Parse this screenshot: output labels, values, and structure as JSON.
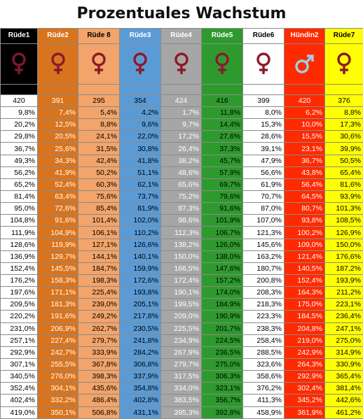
{
  "title": "Prozentuales Wachstum",
  "columns": [
    {
      "name": "Rüde1",
      "bg": "#000000",
      "text": "#ffffff",
      "hbg": "#000000",
      "htext": "#ffffff",
      "symbol": "female",
      "symcolor": "#7b1a2e",
      "symbg": "#000000",
      "base": "420"
    },
    {
      "name": "Rüde2",
      "bg": "#d9741e",
      "text": "#ffffff",
      "hbg": "#d9741e",
      "htext": "#ffffff",
      "symbol": "female",
      "symcolor": "#8b1a2a",
      "symbg": "#d9741e",
      "base": "391"
    },
    {
      "name": "Rüde 8",
      "bg": "#f2a46a",
      "text": "#000000",
      "hbg": "#f2a46a",
      "htext": "#000000",
      "symbol": "female",
      "symcolor": "#8b1a2a",
      "symbg": "#f2a46a",
      "base": "295"
    },
    {
      "name": "Rüde3",
      "bg": "#5b9bd5",
      "text": "#000000",
      "hbg": "#5b9bd5",
      "htext": "#ffffff",
      "symbol": "female",
      "symcolor": "#8b1a2a",
      "symbg": "#5b9bd5",
      "base": "354"
    },
    {
      "name": "Rüde4",
      "bg": "#a6a6a6",
      "text": "#ffffff",
      "hbg": "#a6a6a6",
      "htext": "#ffffff",
      "symbol": "female",
      "symcolor": "#8b1a2a",
      "symbg": "#a6a6a6",
      "base": "424"
    },
    {
      "name": "Rüde5",
      "bg": "#2e9a2e",
      "text": "#000000",
      "hbg": "#2e9a2e",
      "htext": "#ffffff",
      "symbol": "female",
      "symcolor": "#8b1a2a",
      "symbg": "#2e9a2e",
      "base": "416"
    },
    {
      "name": "Rüde6",
      "bg": "#ffffff",
      "text": "#000000",
      "hbg": "#ffffff",
      "htext": "#000000",
      "symbol": "female",
      "symcolor": "#8b1a2a",
      "symbg": "#ffffff",
      "base": "399"
    },
    {
      "name": "Hündin2",
      "bg": "#ff2a00",
      "text": "#ffffff",
      "hbg": "#ff2a00",
      "htext": "#ffffff",
      "symbol": "male",
      "symcolor": "#9fd0ea",
      "symbg": "#ff2a00",
      "base": "420"
    },
    {
      "name": "Rüde7",
      "bg": "#ffff00",
      "text": "#000000",
      "hbg": "#ffff00",
      "htext": "#000000",
      "symbol": "female",
      "symcolor": "#8b1a2a",
      "symbg": "#ffff00",
      "base": "376"
    }
  ],
  "rows": [
    [
      "9,8%",
      "7,4%",
      "5,4%",
      "4,2%",
      "1,7%",
      "11,8%",
      "8,0%",
      "6,2%",
      "8,8%"
    ],
    [
      "20,2%",
      "12,5%",
      "8,8%",
      "9,6%",
      "9,7%",
      "14,4%",
      "15,3%",
      "10,0%",
      "17,3%"
    ],
    [
      "29,8%",
      "20,5%",
      "24,1%",
      "22,0%",
      "17,2%",
      "27,6%",
      "28,6%",
      "15,5%",
      "30,6%"
    ],
    [
      "36,7%",
      "25,6%",
      "31,5%",
      "30,8%",
      "26,4%",
      "37,3%",
      "39,1%",
      "23,1%",
      "39,9%"
    ],
    [
      "49,3%",
      "34,3%",
      "42,4%",
      "41,8%",
      "38,2%",
      "45,7%",
      "47,9%",
      "36,7%",
      "50,5%"
    ],
    [
      "56,2%",
      "41,9%",
      "50,2%",
      "51,1%",
      "48,6%",
      "57,9%",
      "56,6%",
      "43,8%",
      "65,4%"
    ],
    [
      "65,2%",
      "52,4%",
      "60,3%",
      "62,1%",
      "65,6%",
      "69,7%",
      "61,9%",
      "56,4%",
      "81,6%"
    ],
    [
      "81,4%",
      "63,4%",
      "75,6%",
      "73,7%",
      "75,2%",
      "79,6%",
      "70,7%",
      "64,5%",
      "93,9%"
    ],
    [
      "95,0%",
      "72,6%",
      "85,4%",
      "81,9%",
      "87,3%",
      "91,6%",
      "87,0%",
      "80,7%",
      "101,3%"
    ],
    [
      "104,8%",
      "91,6%",
      "101,4%",
      "102,0%",
      "98,6%",
      "101,9%",
      "107,0%",
      "93,8%",
      "108,5%"
    ],
    [
      "111,9%",
      "104,9%",
      "106,1%",
      "110,2%",
      "112,3%",
      "106,7%",
      "121,3%",
      "100,2%",
      "126,9%"
    ],
    [
      "128,6%",
      "119,9%",
      "127,1%",
      "126,6%",
      "138,2%",
      "126,0%",
      "145,6%",
      "109,0%",
      "150,0%"
    ],
    [
      "136,9%",
      "129,7%",
      "144,1%",
      "140,1%",
      "150,0%",
      "138,0%",
      "163,2%",
      "121,4%",
      "176,6%"
    ],
    [
      "152,4%",
      "145,5%",
      "184,7%",
      "159,9%",
      "166,5%",
      "147,6%",
      "180,7%",
      "140,5%",
      "187,2%"
    ],
    [
      "176,2%",
      "158,3%",
      "198,3%",
      "172,6%",
      "172,4%",
      "157,2%",
      "200,8%",
      "152,4%",
      "193,9%"
    ],
    [
      "197,6%",
      "171,1%",
      "225,4%",
      "193,8%",
      "190,1%",
      "174,0%",
      "208,3%",
      "164,3%",
      "211,2%"
    ],
    [
      "209,5%",
      "181,3%",
      "239,0%",
      "205,1%",
      "199,5%",
      "184,9%",
      "218,3%",
      "175,0%",
      "223,1%"
    ],
    [
      "220,2%",
      "191,6%",
      "249,2%",
      "217,8%",
      "209,0%",
      "190,9%",
      "223,3%",
      "184,5%",
      "236,4%"
    ],
    [
      "231,0%",
      "206,9%",
      "262,7%",
      "230,5%",
      "225,5%",
      "201,7%",
      "238,3%",
      "204,8%",
      "247,1%"
    ],
    [
      "257,1%",
      "227,4%",
      "279,7%",
      "241,8%",
      "234,9%",
      "224,5%",
      "258,4%",
      "219,0%",
      "275,0%"
    ],
    [
      "292,9%",
      "242,7%",
      "333,9%",
      "284,2%",
      "267,9%",
      "236,5%",
      "288,5%",
      "242,9%",
      "314,9%"
    ],
    [
      "307,1%",
      "255,5%",
      "367,8%",
      "306,8%",
      "279,7%",
      "275,0%",
      "323,6%",
      "264,3%",
      "330,9%"
    ],
    [
      "340,5%",
      "276,0%",
      "398,3%",
      "337,9%",
      "317,5%",
      "306,3%",
      "358,6%",
      "292,9%",
      "365,4%"
    ],
    [
      "352,4%",
      "304,1%",
      "435,6%",
      "354,8%",
      "334,0%",
      "323,1%",
      "376,2%",
      "302,4%",
      "381,4%"
    ],
    [
      "402,4%",
      "332,2%",
      "486,4%",
      "402,8%",
      "383,5%",
      "356,7%",
      "411,3%",
      "345,2%",
      "442,6%"
    ],
    [
      "419,0%",
      "350,1%",
      "506,8%",
      "431,1%",
      "395,3%",
      "392,8%",
      "458,9%",
      "361,9%",
      "461,2%"
    ]
  ]
}
